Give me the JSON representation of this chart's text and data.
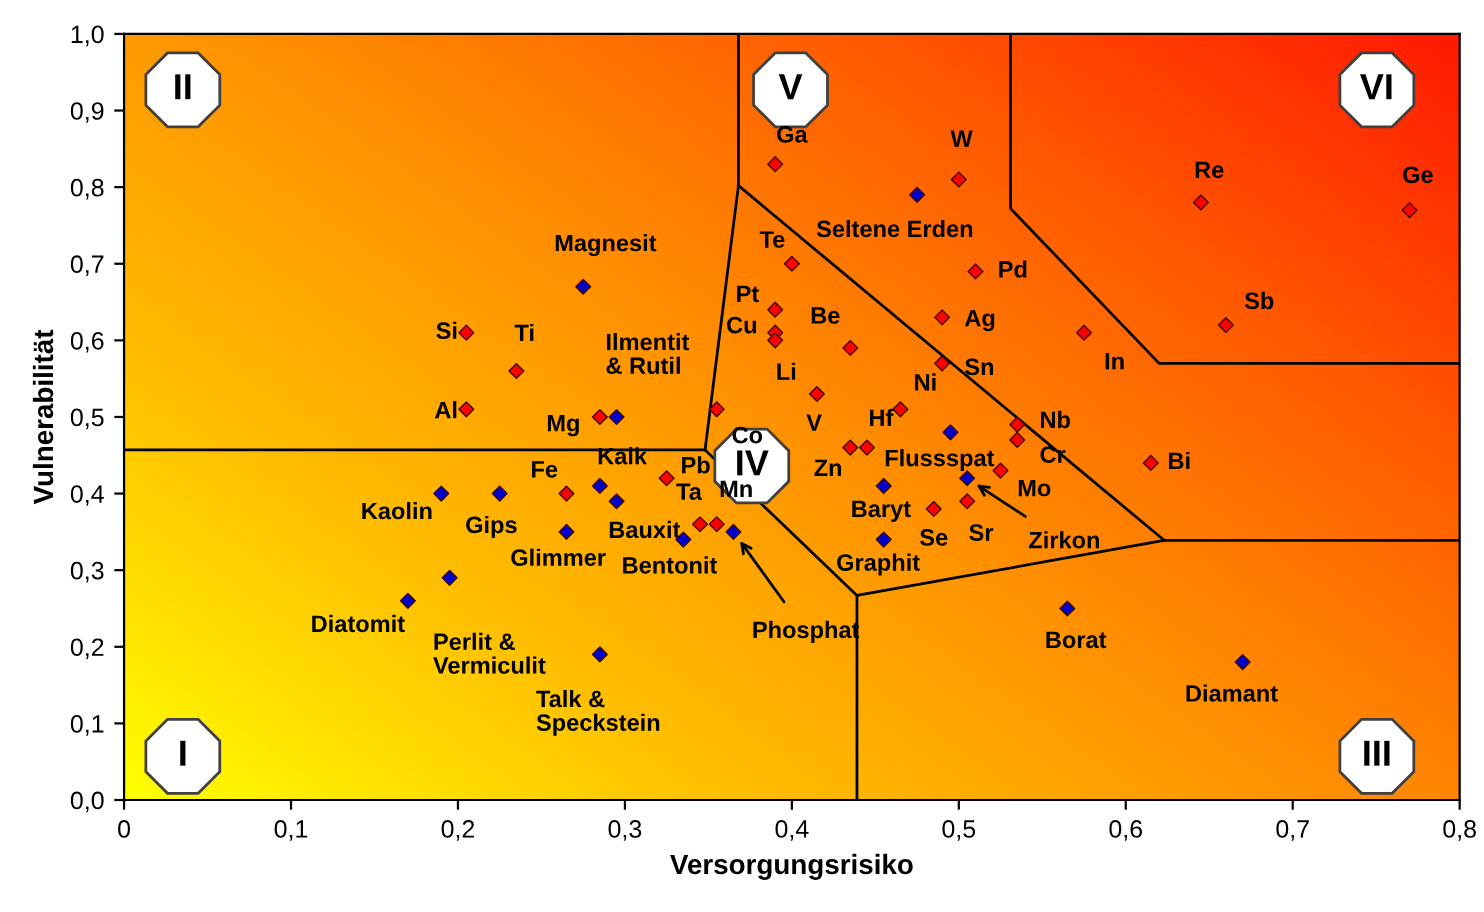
{
  "chart_data": {
    "type": "scatter",
    "xlabel": "Versorgungsrisiko",
    "ylabel": "Vulnerabilität",
    "xlim": [
      0,
      0.8
    ],
    "ylim": [
      0,
      1.0
    ],
    "xticks": [
      0,
      {
        "value": 0.1,
        "label": "0,1"
      },
      {
        "value": 0.2,
        "label": "0,2"
      },
      {
        "value": 0.3,
        "label": "0,3"
      },
      {
        "value": 0.4,
        "label": "0,4"
      },
      {
        "value": 0.5,
        "label": "0,5"
      },
      {
        "value": 0.6,
        "label": "0,6"
      },
      {
        "value": 0.7,
        "label": "0,7"
      },
      {
        "value": 0.8,
        "label": "0,8"
      }
    ],
    "yticks": [
      {
        "value": 0,
        "label": "0,0"
      },
      {
        "value": 0.1,
        "label": "0,1"
      },
      {
        "value": 0.2,
        "label": "0,2"
      },
      {
        "value": 0.3,
        "label": "0,3"
      },
      {
        "value": 0.4,
        "label": "0,4"
      },
      {
        "value": 0.5,
        "label": "0,5"
      },
      {
        "value": 0.6,
        "label": "0,6"
      },
      {
        "value": 0.7,
        "label": "0,7"
      },
      {
        "value": 0.8,
        "label": "0,8"
      },
      {
        "value": 0.9,
        "label": "0,9"
      },
      {
        "value": 1.0,
        "label": "1,0"
      }
    ],
    "grid": false,
    "series": [
      {
        "type": "line",
        "color": "#000000",
        "x": [
          0,
          0.348
        ],
        "values": [
          0.457,
          0.457
        ]
      },
      {
        "type": "line",
        "color": "#000000",
        "x": [
          0.348,
          0.368,
          0.368
        ],
        "values": [
          0.457,
          0.802,
          1.0
        ]
      },
      {
        "type": "line",
        "color": "#000000",
        "x": [
          0.368,
          0.623,
          0.8
        ],
        "values": [
          0.802,
          0.339,
          0.339
        ]
      },
      {
        "type": "line",
        "color": "#000000",
        "x": [
          0.348,
          0.439,
          0.439
        ],
        "values": [
          0.457,
          0.267,
          0
        ]
      },
      {
        "type": "line",
        "color": "#000000",
        "x": [
          0.439,
          0.623
        ],
        "values": [
          0.267,
          0.339
        ]
      },
      {
        "type": "line",
        "color": "#000000",
        "x": [
          0.531,
          0.531,
          0.62,
          0.8
        ],
        "values": [
          1.0,
          0.772,
          0.57,
          0.57
        ]
      },
      {
        "marker": "diamond",
        "color": "#ff0000",
        "x": [
          0.39,
          0.5,
          0.51,
          0.49,
          0.49,
          0.4,
          0.39,
          0.39,
          0.39,
          0.435,
          0.415,
          0.355,
          0.465,
          0.435,
          0.445,
          0.285,
          0.265,
          0.325,
          0.535,
          0.535,
          0.525,
          0.505,
          0.485,
          0.345,
          0.355,
          0.205,
          0.235,
          0.205,
          0.645,
          0.77,
          0.66,
          0.575,
          0.615
        ],
        "values": [
          0.83,
          0.81,
          0.69,
          0.63,
          0.57,
          0.7,
          0.64,
          0.61,
          0.6,
          0.59,
          0.53,
          0.51,
          0.51,
          0.46,
          0.46,
          0.5,
          0.4,
          0.42,
          0.49,
          0.47,
          0.43,
          0.39,
          0.38,
          0.36,
          0.36,
          0.61,
          0.56,
          0.51,
          0.78,
          0.77,
          0.62,
          0.61,
          0.44
        ]
      },
      {
        "marker": "diamond",
        "color": "#0000cc",
        "x": [
          0.475,
          0.275,
          0.295,
          0.285,
          0.455,
          0.495,
          0.505,
          0.455,
          0.365,
          0.335,
          0.565,
          0.295,
          0.265,
          0.225,
          0.19,
          0.195,
          0.17,
          0.285,
          0.67
        ],
        "values": [
          0.79,
          0.67,
          0.5,
          0.41,
          0.41,
          0.48,
          0.42,
          0.34,
          0.35,
          0.34,
          0.25,
          0.39,
          0.35,
          0.4,
          0.4,
          0.29,
          0.26,
          0.19,
          0.18
        ]
      }
    ],
    "annotations": [
      {
        "text": "Ga",
        "x": 0.39,
        "y": 0.83
      },
      {
        "text": "W",
        "x": 0.5,
        "y": 0.81
      },
      {
        "text": "Pd",
        "x": 0.51,
        "y": 0.69
      },
      {
        "text": "Ag",
        "x": 0.49,
        "y": 0.63
      },
      {
        "text": "Sn",
        "x": 0.49,
        "y": 0.57
      },
      {
        "text": "Te",
        "x": 0.4,
        "y": 0.7
      },
      {
        "text": "Pt",
        "x": 0.39,
        "y": 0.64
      },
      {
        "text": "Cu",
        "x": 0.39,
        "y": 0.61
      },
      {
        "text": "Li",
        "x": 0.39,
        "y": 0.6
      },
      {
        "text": "Be",
        "x": 0.435,
        "y": 0.59
      },
      {
        "text": "V",
        "x": 0.415,
        "y": 0.53
      },
      {
        "text": "Co",
        "x": 0.355,
        "y": 0.51
      },
      {
        "text": "Ni",
        "x": 0.465,
        "y": 0.51
      },
      {
        "text": "Zn",
        "x": 0.435,
        "y": 0.46
      },
      {
        "text": "Hf",
        "x": 0.445,
        "y": 0.46
      },
      {
        "text": "Mg",
        "x": 0.285,
        "y": 0.5
      },
      {
        "text": "Fe",
        "x": 0.265,
        "y": 0.4
      },
      {
        "text": "Pb",
        "x": 0.325,
        "y": 0.42
      },
      {
        "text": "Nb",
        "x": 0.535,
        "y": 0.49
      },
      {
        "text": "Cr",
        "x": 0.535,
        "y": 0.47
      },
      {
        "text": "Mo",
        "x": 0.525,
        "y": 0.43
      },
      {
        "text": "Sr",
        "x": 0.505,
        "y": 0.39
      },
      {
        "text": "Se",
        "x": 0.485,
        "y": 0.38
      },
      {
        "text": "Ta",
        "x": 0.345,
        "y": 0.36
      },
      {
        "text": "Mn",
        "x": 0.355,
        "y": 0.36
      },
      {
        "text": "Si",
        "x": 0.205,
        "y": 0.61
      },
      {
        "text": "Ti",
        "x": 0.235,
        "y": 0.56
      },
      {
        "text": "Al",
        "x": 0.205,
        "y": 0.51
      },
      {
        "text": "Re",
        "x": 0.645,
        "y": 0.78
      },
      {
        "text": "Ge",
        "x": 0.77,
        "y": 0.77
      },
      {
        "text": "Sb",
        "x": 0.66,
        "y": 0.62
      },
      {
        "text": "In",
        "x": 0.575,
        "y": 0.61
      },
      {
        "text": "Bi",
        "x": 0.615,
        "y": 0.44
      },
      {
        "text": "Seltene Erden",
        "x": 0.475,
        "y": 0.79
      },
      {
        "text": "Magnesit",
        "x": 0.275,
        "y": 0.67
      },
      {
        "text": "Ilmentit\n& Rutil",
        "x": 0.295,
        "y": 0.5
      },
      {
        "text": "Kalk",
        "x": 0.285,
        "y": 0.41
      },
      {
        "text": "Baryt",
        "x": 0.455,
        "y": 0.41
      },
      {
        "text": "Flussspat",
        "x": 0.495,
        "y": 0.48
      },
      {
        "text": "Zirkon",
        "x": 0.505,
        "y": 0.42
      },
      {
        "text": "Graphit",
        "x": 0.455,
        "y": 0.34
      },
      {
        "text": "Phosphat",
        "x": 0.365,
        "y": 0.35
      },
      {
        "text": "Bentonit",
        "x": 0.335,
        "y": 0.34
      },
      {
        "text": "Borat",
        "x": 0.565,
        "y": 0.25
      },
      {
        "text": "Bauxit",
        "x": 0.295,
        "y": 0.39
      },
      {
        "text": "Glimmer",
        "x": 0.265,
        "y": 0.35
      },
      {
        "text": "Gips",
        "x": 0.225,
        "y": 0.4
      },
      {
        "text": "Kaolin",
        "x": 0.19,
        "y": 0.4
      },
      {
        "text": "Perlit &\nVermiculit",
        "x": 0.195,
        "y": 0.29
      },
      {
        "text": "Diatomit",
        "x": 0.17,
        "y": 0.26
      },
      {
        "text": "Talk &\nSpeckstein",
        "x": 0.285,
        "y": 0.19
      },
      {
        "text": "Diamant",
        "x": 0.67,
        "y": 0.18
      },
      "I",
      "II",
      "III",
      "IV",
      "V",
      "VI"
    ]
  }
}
